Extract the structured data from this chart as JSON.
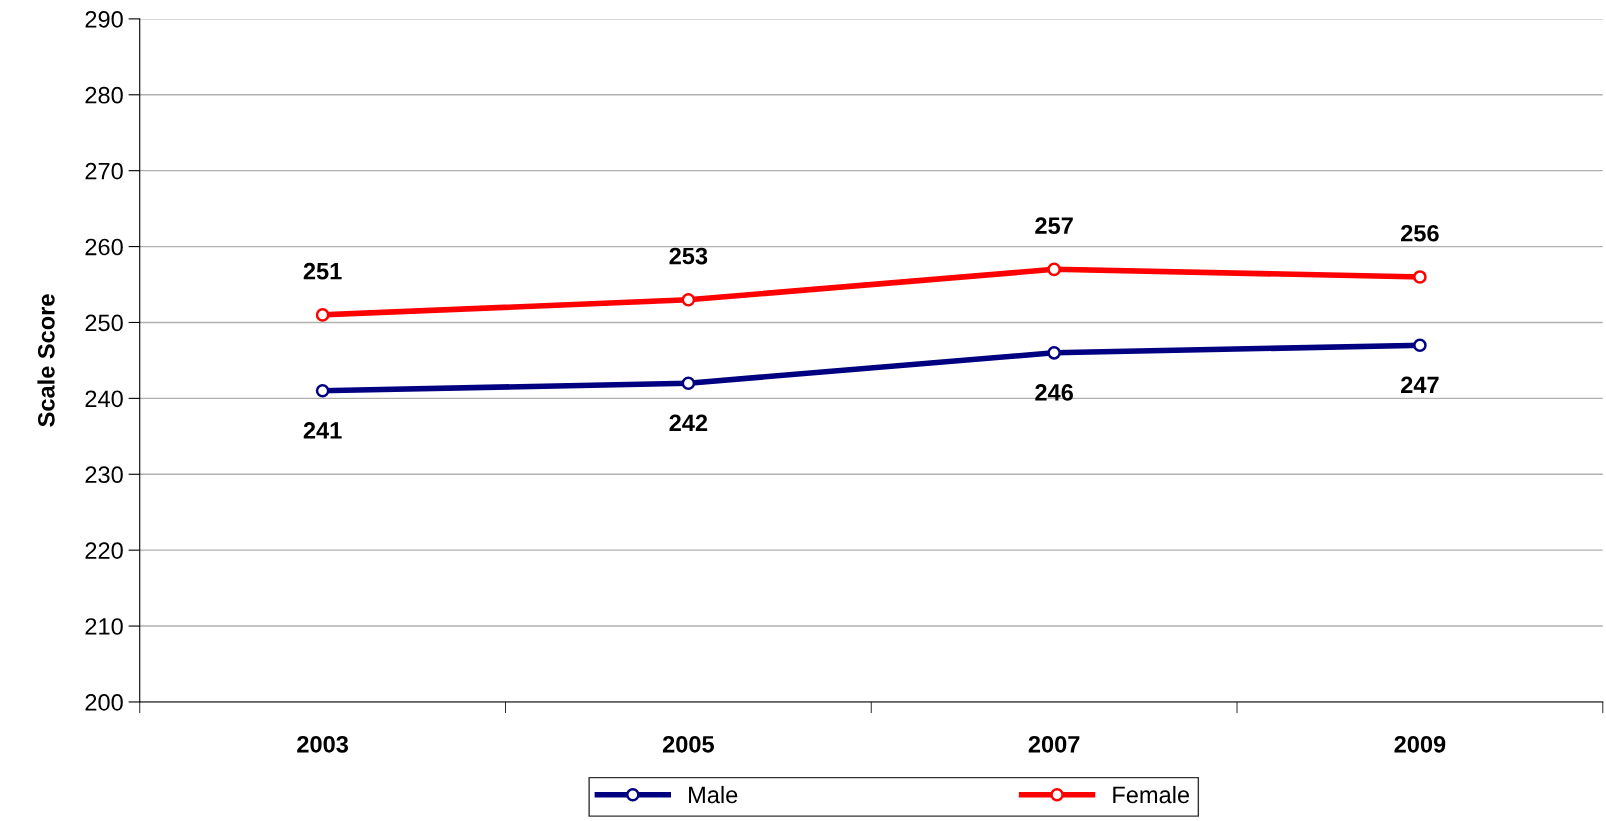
{
  "chart_data": {
    "type": "line",
    "ylabel": "Scale Score",
    "categories": [
      "2003",
      "2005",
      "2007",
      "2009"
    ],
    "series": [
      {
        "name": "Male",
        "color": "#000080",
        "values": [
          241,
          242,
          246,
          247
        ]
      },
      {
        "name": "Female",
        "color": "#ff0000",
        "values": [
          251,
          253,
          257,
          256
        ]
      }
    ],
    "ylim": [
      200,
      290
    ],
    "yticks": [
      200,
      210,
      220,
      230,
      240,
      250,
      260,
      270,
      280,
      290
    ],
    "grid": "y",
    "legend": "bottom",
    "marker": "circle",
    "line_style": "solid",
    "data_labels": true
  }
}
